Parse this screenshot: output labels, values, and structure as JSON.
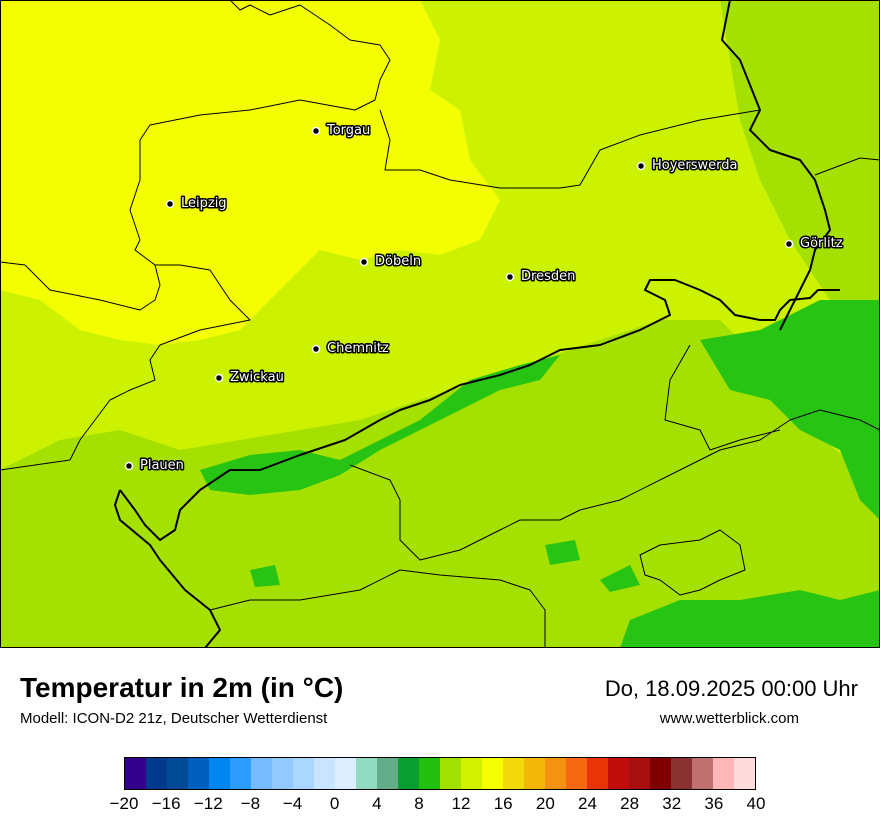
{
  "map": {
    "cities": [
      {
        "name": "Torgau"
      },
      {
        "name": "Hoyerswerda"
      },
      {
        "name": "Leipzig"
      },
      {
        "name": "Görlitz"
      },
      {
        "name": "Döbeln"
      },
      {
        "name": "Dresden"
      },
      {
        "name": "Chemnitz"
      },
      {
        "name": "Zwickau"
      },
      {
        "name": "Plauen"
      }
    ],
    "colors": {
      "yellow": "#f3ff00",
      "yellow_green": "#ccf200",
      "light_green": "#a5e100",
      "green": "#27c414",
      "border": "#000000"
    }
  },
  "header": {
    "title": "Temperatur in 2m (in °C)",
    "subtitle": "Modell: ICON-D2 21z, Deutscher Wetterdienst",
    "datetime": "Do, 18.09.2025 00:00 Uhr",
    "website": "www.wetterblick.com"
  },
  "legend": {
    "colors": [
      "#33008c",
      "#003a8c",
      "#004a96",
      "#0060c0",
      "#0086f0",
      "#2c9dff",
      "#76bbff",
      "#92caff",
      "#aad6ff",
      "#c8e4ff",
      "#dcedff",
      "#92dbc3",
      "#64ad8a",
      "#089f30",
      "#24c010",
      "#a2e000",
      "#d2f100",
      "#f5ff00",
      "#f2d90a",
      "#f3b70a",
      "#f49212",
      "#f46912",
      "#e93408",
      "#c20d0d",
      "#a80f10",
      "#7f0000",
      "#8a3232",
      "#c07070",
      "#ffb6b6",
      "#ffdcdc"
    ],
    "ticks": [
      "−20",
      "−16",
      "−12",
      "−8",
      "−4",
      "0",
      "4",
      "8",
      "12",
      "16",
      "20",
      "24",
      "28",
      "32",
      "36",
      "40"
    ]
  }
}
